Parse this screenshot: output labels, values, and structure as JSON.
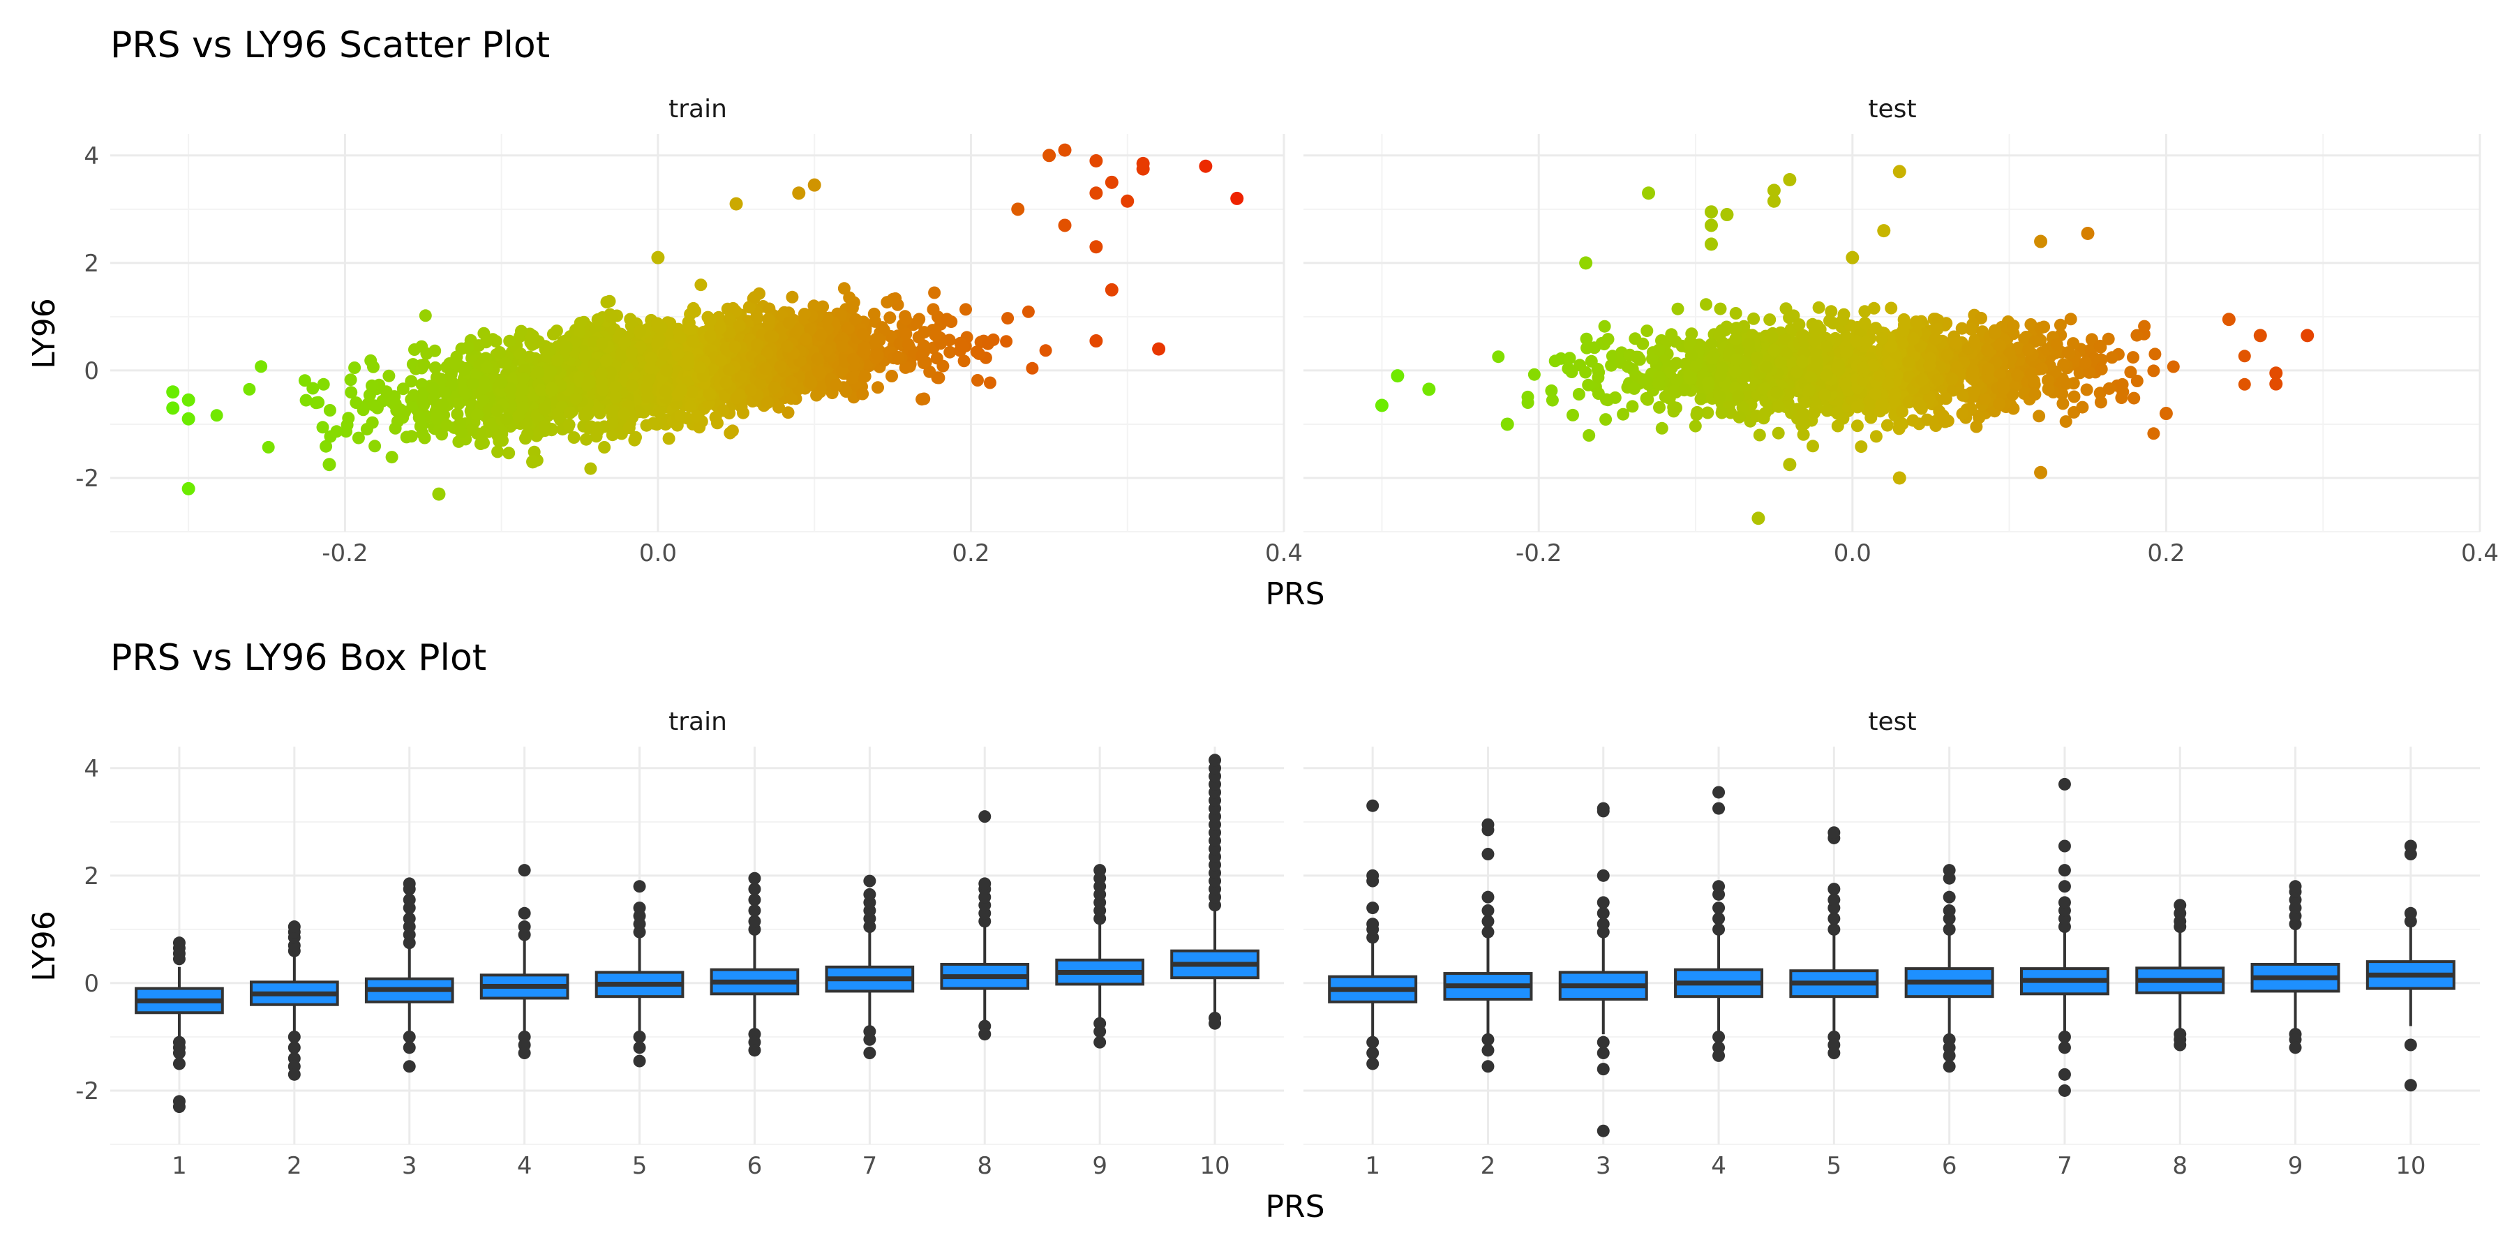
{
  "chart_data": [
    {
      "type": "scatter",
      "title": "PRS vs LY96 Scatter Plot",
      "facets": [
        "train",
        "test"
      ],
      "xlabel": "PRS",
      "ylabel": "LY96",
      "xlim": [
        -0.35,
        0.4
      ],
      "ylim": [
        -3,
        4.4
      ],
      "x_ticks": [
        "-0.2",
        "0.0",
        "0.2",
        "0.4"
      ],
      "y_ticks": [
        "-2",
        "0",
        "2",
        "4"
      ],
      "grid": true,
      "color_scale": {
        "low": "#66ee00",
        "mid": "#c8b400",
        "high": "#ee2200",
        "mapped_to": "PRS"
      },
      "panels": [
        {
          "facet": "train",
          "n_points_approx": 7000,
          "trend": {
            "intercept": 0.0,
            "slope": 3.2
          },
          "x_range": [
            -0.32,
            0.37
          ],
          "highlighted_points": [
            {
              "x": 0.26,
              "y": 4.1
            },
            {
              "x": 0.25,
              "y": 4.0
            },
            {
              "x": 0.28,
              "y": 3.9
            },
            {
              "x": 0.31,
              "y": 3.85
            },
            {
              "x": 0.31,
              "y": 3.75
            },
            {
              "x": 0.35,
              "y": 3.8
            },
            {
              "x": 0.37,
              "y": 3.2
            },
            {
              "x": 0.3,
              "y": 3.15
            },
            {
              "x": 0.28,
              "y": 3.3
            },
            {
              "x": 0.29,
              "y": 3.5
            },
            {
              "x": 0.23,
              "y": 3.0
            },
            {
              "x": 0.26,
              "y": 2.7
            },
            {
              "x": 0.28,
              "y": 2.3
            },
            {
              "x": 0.29,
              "y": 1.5
            },
            {
              "x": 0.32,
              "y": 0.4
            },
            {
              "x": 0.28,
              "y": 0.55
            },
            {
              "x": 0.05,
              "y": 3.1
            },
            {
              "x": 0.1,
              "y": 3.45
            },
            {
              "x": 0.09,
              "y": 3.3
            },
            {
              "x": -0.31,
              "y": -0.4
            },
            {
              "x": -0.31,
              "y": -0.7
            },
            {
              "x": -0.3,
              "y": -0.55
            },
            {
              "x": -0.3,
              "y": -0.9
            },
            {
              "x": -0.3,
              "y": -2.2
            },
            {
              "x": -0.14,
              "y": -2.3
            },
            {
              "x": -0.21,
              "y": -1.75
            },
            {
              "x": -0.08,
              "y": -1.7
            },
            {
              "x": 0.0,
              "y": 2.1
            }
          ]
        },
        {
          "facet": "test",
          "n_points_approx": 3500,
          "trend": {
            "intercept": 0.0,
            "slope": 0.5
          },
          "x_range": [
            -0.3,
            0.29
          ],
          "highlighted_points": [
            {
              "x": -0.04,
              "y": 3.55
            },
            {
              "x": -0.05,
              "y": 3.35
            },
            {
              "x": -0.05,
              "y": 3.15
            },
            {
              "x": 0.03,
              "y": 3.7
            },
            {
              "x": -0.13,
              "y": 3.3
            },
            {
              "x": -0.09,
              "y": 2.95
            },
            {
              "x": -0.08,
              "y": 2.9
            },
            {
              "x": -0.09,
              "y": 2.7
            },
            {
              "x": -0.09,
              "y": 2.35
            },
            {
              "x": 0.0,
              "y": 2.1
            },
            {
              "x": 0.02,
              "y": 2.6
            },
            {
              "x": 0.15,
              "y": 2.55
            },
            {
              "x": 0.12,
              "y": 2.4
            },
            {
              "x": -0.17,
              "y": 2.0
            },
            {
              "x": 0.29,
              "y": 0.65
            },
            {
              "x": 0.24,
              "y": 0.95
            },
            {
              "x": 0.26,
              "y": 0.65
            },
            {
              "x": 0.27,
              "y": -0.05
            },
            {
              "x": 0.27,
              "y": -0.25
            },
            {
              "x": -0.3,
              "y": -0.65
            },
            {
              "x": -0.29,
              "y": -0.1
            },
            {
              "x": -0.27,
              "y": -0.35
            },
            {
              "x": -0.06,
              "y": -2.75
            },
            {
              "x": 0.03,
              "y": -2.0
            },
            {
              "x": 0.12,
              "y": -1.9
            },
            {
              "x": -0.04,
              "y": -1.75
            },
            {
              "x": -0.22,
              "y": -1.0
            },
            {
              "x": 0.2,
              "y": -0.8
            }
          ]
        }
      ]
    },
    {
      "type": "box",
      "title": "PRS vs LY96 Box Plot",
      "facets": [
        "train",
        "test"
      ],
      "xlabel": "PRS",
      "ylabel": "LY96",
      "ylim": [
        -3,
        4.4
      ],
      "y_ticks": [
        "-2",
        "0",
        "2",
        "4"
      ],
      "categories": [
        "1",
        "2",
        "3",
        "4",
        "5",
        "6",
        "7",
        "8",
        "9",
        "10"
      ],
      "grid": true,
      "box_fill": "#1e90ff",
      "box_stroke": "#333333",
      "panels": [
        {
          "facet": "train",
          "boxes": [
            {
              "q1": -0.55,
              "median": -0.33,
              "q3": -0.1,
              "low": -1.0,
              "high": 0.3,
              "outliers": [
                -1.1,
                -1.2,
                -1.3,
                -1.5,
                -2.2,
                -2.3,
                0.45,
                0.55,
                0.65,
                0.75
              ]
            },
            {
              "q1": -0.4,
              "median": -0.2,
              "q3": 0.02,
              "low": -0.95,
              "high": 0.55,
              "outliers": [
                -1.0,
                -1.2,
                -1.4,
                -1.55,
                -1.7,
                0.6,
                0.7,
                0.85,
                0.95,
                1.05
              ]
            },
            {
              "q1": -0.35,
              "median": -0.12,
              "q3": 0.08,
              "low": -0.9,
              "high": 0.65,
              "outliers": [
                -1.0,
                -1.2,
                -1.55,
                0.75,
                0.9,
                1.05,
                1.2,
                1.4,
                1.55,
                1.75,
                1.85
              ]
            },
            {
              "q1": -0.28,
              "median": -0.06,
              "q3": 0.15,
              "low": -0.9,
              "high": 0.8,
              "outliers": [
                -1.0,
                -1.15,
                -1.3,
                0.9,
                1.05,
                1.3,
                2.1
              ]
            },
            {
              "q1": -0.25,
              "median": -0.02,
              "q3": 0.2,
              "low": -0.9,
              "high": 0.85,
              "outliers": [
                -1.0,
                -1.2,
                -1.45,
                0.95,
                1.1,
                1.25,
                1.4,
                1.8
              ]
            },
            {
              "q1": -0.2,
              "median": 0.02,
              "q3": 0.25,
              "low": -0.85,
              "high": 0.9,
              "outliers": [
                -0.95,
                -1.1,
                -1.25,
                1.0,
                1.15,
                1.35,
                1.55,
                1.75,
                1.95
              ]
            },
            {
              "q1": -0.15,
              "median": 0.08,
              "q3": 0.3,
              "low": -0.8,
              "high": 0.95,
              "outliers": [
                -0.9,
                -1.05,
                -1.3,
                1.05,
                1.2,
                1.35,
                1.5,
                1.65,
                1.9
              ]
            },
            {
              "q1": -0.1,
              "median": 0.12,
              "q3": 0.35,
              "low": -0.7,
              "high": 1.05,
              "outliers": [
                -0.8,
                -0.95,
                1.15,
                1.3,
                1.45,
                1.6,
                1.75,
                1.85,
                3.1
              ]
            },
            {
              "q1": -0.02,
              "median": 0.2,
              "q3": 0.43,
              "low": -0.65,
              "high": 1.1,
              "outliers": [
                -0.75,
                -0.9,
                -1.1,
                1.2,
                1.35,
                1.5,
                1.65,
                1.8,
                1.95,
                2.1
              ]
            },
            {
              "q1": 0.1,
              "median": 0.35,
              "q3": 0.6,
              "low": -0.55,
              "high": 1.35,
              "outliers": [
                -0.65,
                -0.75,
                1.45,
                1.6,
                1.75,
                1.9,
                2.05,
                2.2,
                2.35,
                2.5,
                2.65,
                2.8,
                2.95,
                3.1,
                3.25,
                3.4,
                3.55,
                3.7,
                3.85,
                4.0,
                4.15
              ]
            }
          ]
        },
        {
          "facet": "test",
          "boxes": [
            {
              "q1": -0.35,
              "median": -0.12,
              "q3": 0.12,
              "low": -1.0,
              "high": 0.75,
              "outliers": [
                -1.1,
                -1.3,
                -1.5,
                0.85,
                1.0,
                1.1,
                1.4,
                1.9,
                2.0,
                3.3
              ]
            },
            {
              "q1": -0.3,
              "median": -0.05,
              "q3": 0.18,
              "low": -0.95,
              "high": 0.85,
              "outliers": [
                -1.05,
                -1.25,
                -1.55,
                0.95,
                1.15,
                1.35,
                1.6,
                2.4,
                2.85,
                2.95
              ]
            },
            {
              "q1": -0.3,
              "median": -0.05,
              "q3": 0.2,
              "low": -0.95,
              "high": 0.85,
              "outliers": [
                -1.1,
                -1.3,
                -1.6,
                -2.75,
                0.95,
                1.1,
                1.3,
                1.5,
                2.0,
                3.2,
                3.25
              ]
            },
            {
              "q1": -0.25,
              "median": 0.0,
              "q3": 0.25,
              "low": -0.9,
              "high": 0.9,
              "outliers": [
                -1.0,
                -1.2,
                -1.35,
                1.0,
                1.2,
                1.4,
                1.65,
                1.8,
                3.25,
                3.55
              ]
            },
            {
              "q1": -0.25,
              "median": 0.0,
              "q3": 0.23,
              "low": -0.9,
              "high": 0.9,
              "outliers": [
                -1.0,
                -1.15,
                -1.3,
                1.0,
                1.2,
                1.4,
                1.55,
                1.75,
                2.7,
                2.8
              ]
            },
            {
              "q1": -0.25,
              "median": 0.02,
              "q3": 0.27,
              "low": -0.95,
              "high": 0.9,
              "outliers": [
                -1.05,
                -1.2,
                -1.35,
                -1.55,
                1.0,
                1.2,
                1.35,
                1.6,
                1.95,
                2.1
              ]
            },
            {
              "q1": -0.2,
              "median": 0.05,
              "q3": 0.27,
              "low": -0.9,
              "high": 0.95,
              "outliers": [
                -1.0,
                -1.2,
                -1.7,
                -2.0,
                1.05,
                1.2,
                1.35,
                1.5,
                1.8,
                2.1,
                2.55,
                3.7
              ]
            },
            {
              "q1": -0.18,
              "median": 0.05,
              "q3": 0.28,
              "low": -0.85,
              "high": 0.95,
              "outliers": [
                -0.95,
                -1.05,
                -1.15,
                1.05,
                1.15,
                1.3,
                1.45
              ]
            },
            {
              "q1": -0.15,
              "median": 0.1,
              "q3": 0.35,
              "low": -0.85,
              "high": 1.0,
              "outliers": [
                -0.95,
                -1.05,
                -1.2,
                1.1,
                1.25,
                1.4,
                1.55,
                1.7,
                1.8
              ]
            },
            {
              "q1": -0.1,
              "median": 0.15,
              "q3": 0.4,
              "low": -0.8,
              "high": 1.05,
              "outliers": [
                -1.15,
                -1.9,
                1.15,
                1.3,
                2.4,
                2.55
              ]
            }
          ]
        }
      ]
    }
  ]
}
